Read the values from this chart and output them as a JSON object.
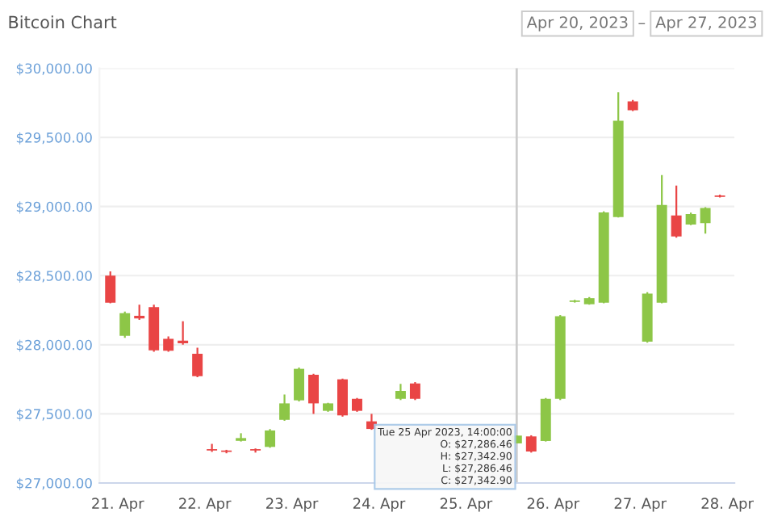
{
  "chart_data": {
    "type": "candlestick",
    "title": "Bitcoin Chart",
    "x": [
      "2023-04-20T22:00",
      "2023-04-21T02:00",
      "2023-04-21T06:00",
      "2023-04-21T10:00",
      "2023-04-21T14:00",
      "2023-04-21T18:00",
      "2023-04-21T22:00",
      "2023-04-22T02:00",
      "2023-04-22T06:00",
      "2023-04-22T10:00",
      "2023-04-22T14:00",
      "2023-04-22T18:00",
      "2023-04-22T22:00",
      "2023-04-23T02:00",
      "2023-04-23T06:00",
      "2023-04-23T10:00",
      "2023-04-23T14:00",
      "2023-04-23T18:00",
      "2023-04-23T22:00",
      "2023-04-24T06:00",
      "2023-04-24T10:00",
      "2023-04-25T14:00",
      "2023-04-25T18:00",
      "2023-04-25T22:00",
      "2023-04-26T02:00",
      "2023-04-26T06:00",
      "2023-04-26T10:00",
      "2023-04-26T14:00",
      "2023-04-26T18:00",
      "2023-04-26T22:00",
      "2023-04-27T02:00",
      "2023-04-27T06:00",
      "2023-04-27T10:00",
      "2023-04-27T14:00",
      "2023-04-27T18:00",
      "2023-04-27T22:00"
    ],
    "ohlc": [
      [
        28500,
        28530,
        28300,
        28304
      ],
      [
        28065,
        28240,
        28050,
        28228
      ],
      [
        28210,
        28290,
        28180,
        28190
      ],
      [
        28272,
        28290,
        27950,
        27960
      ],
      [
        28043,
        28060,
        27950,
        27957
      ],
      [
        28030,
        28170,
        28000,
        28010
      ],
      [
        27935,
        27978,
        27765,
        27772
      ],
      [
        27245,
        27283,
        27225,
        27235
      ],
      [
        27235,
        27240,
        27215,
        27225
      ],
      [
        27305,
        27360,
        27300,
        27325
      ],
      [
        27245,
        27250,
        27220,
        27235
      ],
      [
        27261,
        27390,
        27255,
        27380
      ],
      [
        27457,
        27640,
        27450,
        27576
      ],
      [
        27598,
        27835,
        27590,
        27826
      ],
      [
        27783,
        27790,
        27500,
        27576
      ],
      [
        27522,
        27580,
        27515,
        27576
      ],
      [
        27750,
        27755,
        27480,
        27489
      ],
      [
        27609,
        27615,
        27515,
        27522
      ],
      [
        27446,
        27500,
        27385,
        27391
      ],
      [
        27609,
        27717,
        27600,
        27666
      ],
      [
        27720,
        27730,
        27600,
        27609
      ],
      [
        27286.46,
        27342.9,
        27286.46,
        27342.9
      ],
      [
        27337,
        27345,
        27220,
        27228
      ],
      [
        27304,
        27615,
        27300,
        27609
      ],
      [
        27609,
        28215,
        27600,
        28207
      ],
      [
        28310,
        28325,
        28305,
        28320
      ],
      [
        28293,
        28345,
        28290,
        28337
      ],
      [
        28304,
        28965,
        28300,
        28957
      ],
      [
        28924,
        29826,
        28920,
        29620
      ],
      [
        29761,
        29770,
        29690,
        29696
      ],
      [
        28022,
        28380,
        28015,
        28370
      ],
      [
        28304,
        29228,
        28300,
        29011
      ],
      [
        28935,
        29152,
        28775,
        28783
      ],
      [
        28870,
        28955,
        28865,
        28946
      ],
      [
        28880,
        28995,
        28804,
        28989
      ],
      [
        29080,
        29085,
        29065,
        29070
      ]
    ],
    "colors": [
      "#e94545",
      "#8dc647",
      "#e94545",
      "#e94545",
      "#e94545",
      "#e94545",
      "#e94545",
      "#e94545",
      "#e94545",
      "#8dc647",
      "#e94545",
      "#8dc647",
      "#8dc647",
      "#8dc647",
      "#e94545",
      "#8dc647",
      "#e94545",
      "#e94545",
      "#e94545",
      "#8dc647",
      "#e94545",
      "#8dc647",
      "#e94545",
      "#8dc647",
      "#8dc647",
      "#8dc647",
      "#8dc647",
      "#8dc647",
      "#8dc647",
      "#e94545",
      "#8dc647",
      "#8dc647",
      "#e94545",
      "#8dc647",
      "#8dc647",
      "#e94545"
    ],
    "xlim": [
      "2023-04-20T19:00",
      "2023-04-28T02:00"
    ],
    "xticks": [
      {
        "value": "2023-04-21",
        "label": "21. Apr"
      },
      {
        "value": "2023-04-22",
        "label": "22. Apr"
      },
      {
        "value": "2023-04-23",
        "label": "23. Apr"
      },
      {
        "value": "2023-04-24",
        "label": "24. Apr"
      },
      {
        "value": "2023-04-25",
        "label": "25. Apr"
      },
      {
        "value": "2023-04-26",
        "label": "26. Apr"
      },
      {
        "value": "2023-04-27",
        "label": "27. Apr"
      },
      {
        "value": "2023-04-28",
        "label": "28. Apr"
      }
    ],
    "ylim": [
      27000,
      30000
    ],
    "yticks": [
      {
        "value": 27000,
        "label": "$27,000.00"
      },
      {
        "value": 27500,
        "label": "$27,500.00"
      },
      {
        "value": 28000,
        "label": "$28,000.00"
      },
      {
        "value": 28500,
        "label": "$28,500.00"
      },
      {
        "value": 29000,
        "label": "$29,000.00"
      },
      {
        "value": 29500,
        "label": "$29,500.00"
      },
      {
        "value": 30000,
        "label": "$30,000.00"
      }
    ],
    "grid": "y",
    "ref_lines": [
      {
        "axis": "x",
        "value": "2023-04-25T14:00",
        "color": "#cccccc"
      }
    ],
    "annotations": [
      "Apr 20, 2023",
      "–",
      "Apr 27, 2023",
      {
        "text": "Tue 25 Apr 2023, 14:00:00\nO: $27,286.46\nH: $27,342.90\nL: $27,286.46\nC: $27,342.90",
        "x": "2023-04-25T14:00",
        "y": 27286.46
      }
    ]
  }
}
